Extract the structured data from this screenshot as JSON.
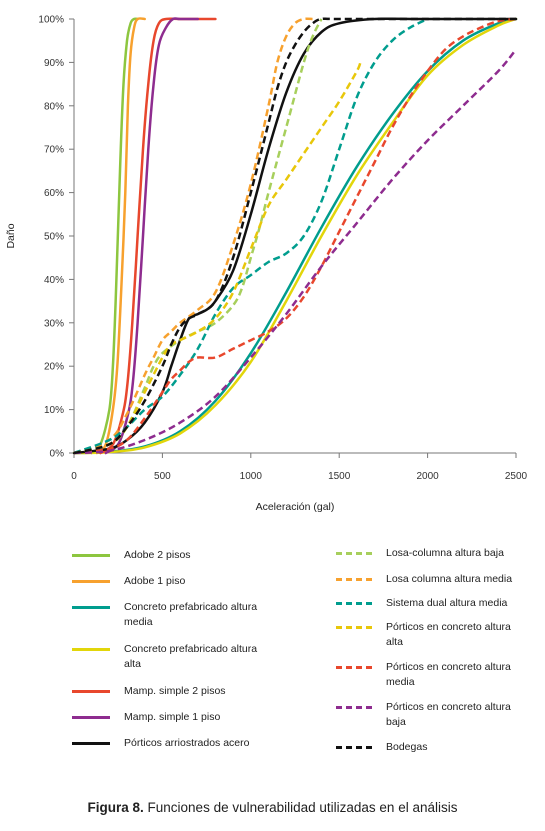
{
  "chart_data": {
    "type": "line",
    "xlabel": "Aceleración (gal)",
    "ylabel": "Daño",
    "xlim": [
      0,
      2500
    ],
    "ylim": [
      0,
      100
    ],
    "x_ticks": [
      "0",
      "500",
      "1000",
      "1500",
      "2000",
      "2500"
    ],
    "y_ticks": [
      "0%",
      "10%",
      "20%",
      "30%",
      "40%",
      "50%",
      "60%",
      "70%",
      "80%",
      "90%",
      "100%"
    ],
    "grid": false,
    "legend_position": "bottom",
    "series": [
      {
        "name": "Adobe 2 pisos",
        "color": "#8dc63f",
        "dashed": false,
        "x": [
          100,
          150,
          200,
          220,
          240,
          260,
          280,
          300,
          320,
          340,
          360
        ],
        "y": [
          0,
          2,
          10,
          20,
          40,
          65,
          85,
          95,
          99,
          100,
          100
        ]
      },
      {
        "name": "Adobe 1 piso",
        "color": "#f7a12e",
        "dashed": false,
        "x": [
          130,
          180,
          220,
          245,
          270,
          290,
          305,
          320,
          340,
          360,
          400
        ],
        "y": [
          0,
          2,
          10,
          20,
          40,
          60,
          80,
          92,
          98,
          100,
          100
        ]
      },
      {
        "name": "Concreto prefabricado altura media",
        "color": "#009d8e",
        "dashed": false,
        "x": [
          0,
          200,
          400,
          600,
          800,
          1000,
          1200,
          1400,
          1600,
          1800,
          2000,
          2200,
          2400,
          2500
        ],
        "y": [
          0,
          0.3,
          1.5,
          5,
          12,
          23,
          37,
          52,
          66,
          78,
          88,
          95,
          99,
          100
        ]
      },
      {
        "name": "Concreto prefabricado altura alta",
        "color": "#e2d60a",
        "dashed": false,
        "x": [
          0,
          200,
          400,
          600,
          800,
          1000,
          1200,
          1400,
          1600,
          1800,
          2000,
          2200,
          2400,
          2500
        ],
        "y": [
          0,
          0.2,
          1.3,
          4.5,
          11,
          21,
          35,
          50,
          64,
          76,
          87,
          94,
          98.5,
          100
        ]
      },
      {
        "name": "Mamp. simple 2 pisos",
        "color": "#e8472d",
        "dashed": false,
        "x": [
          150,
          220,
          270,
          300,
          330,
          360,
          390,
          420,
          450,
          480,
          520,
          600,
          800
        ],
        "y": [
          0,
          2,
          8,
          15,
          30,
          50,
          70,
          85,
          95,
          99,
          100,
          100,
          100
        ]
      },
      {
        "name": "Mamp. simple 1 piso",
        "color": "#8e2c8f",
        "dashed": false,
        "x": [
          180,
          250,
          300,
          330,
          360,
          390,
          420,
          450,
          480,
          520,
          560,
          600,
          700
        ],
        "y": [
          0,
          2,
          8,
          15,
          30,
          50,
          70,
          85,
          94,
          98,
          100,
          100,
          100
        ]
      },
      {
        "name": "Pórticos arriostrados acero",
        "color": "#111111",
        "dashed": false,
        "x": [
          0,
          200,
          300,
          400,
          500,
          550,
          600,
          650,
          700,
          750,
          800,
          900,
          1000,
          1100,
          1200,
          1300,
          1400,
          1500,
          1700,
          2000,
          2500
        ],
        "y": [
          0,
          1,
          3,
          7,
          14,
          20,
          26,
          31,
          32,
          33,
          35,
          42,
          55,
          70,
          83,
          92,
          97,
          99,
          100,
          100,
          100
        ]
      },
      {
        "name": "Losa-columna altura baja",
        "color": "#a7cf5c",
        "dashed": true,
        "x": [
          0,
          200,
          300,
          400,
          450,
          500,
          600,
          700,
          800,
          900,
          950,
          1000,
          1050,
          1100,
          1200,
          1300,
          1350,
          1400
        ],
        "y": [
          0,
          2,
          6,
          15,
          20,
          23,
          26,
          28,
          30,
          34,
          38,
          45,
          52,
          60,
          75,
          90,
          96,
          100
        ]
      },
      {
        "name": "Losa columna altura media",
        "color": "#f7a12e",
        "dashed": true,
        "x": [
          0,
          200,
          300,
          400,
          450,
          500,
          550,
          600,
          700,
          800,
          900,
          1000,
          1100,
          1150,
          1200,
          1250,
          1300,
          1350
        ],
        "y": [
          0,
          3,
          9,
          18,
          22,
          26,
          28,
          30,
          33,
          37,
          48,
          62,
          80,
          90,
          96,
          99,
          100,
          100
        ]
      },
      {
        "name": "Sistema dual altura media",
        "color": "#009d8e",
        "dashed": true,
        "x": [
          0,
          200,
          300,
          400,
          500,
          600,
          700,
          800,
          900,
          1000,
          1100,
          1200,
          1300,
          1400,
          1500,
          1600,
          1700,
          1800,
          1900,
          2000
        ],
        "y": [
          0,
          3,
          6,
          10,
          13,
          18,
          24,
          32,
          38,
          41,
          44,
          46,
          50,
          58,
          70,
          82,
          90,
          95,
          98,
          100
        ]
      },
      {
        "name": "Pórticos en concreto altura alta",
        "color": "#e8c70a",
        "dashed": true,
        "x": [
          0,
          200,
          300,
          400,
          500,
          550,
          600,
          700,
          800,
          900,
          1000,
          1100,
          1200,
          1300,
          1400,
          1500,
          1600,
          1620
        ],
        "y": [
          0,
          2,
          6,
          14,
          22,
          25,
          26,
          28,
          31,
          37,
          47,
          57,
          63,
          69,
          75,
          81,
          88,
          90
        ]
      },
      {
        "name": "Pórticos en concreto altura media",
        "color": "#e8472d",
        "dashed": true,
        "x": [
          0,
          200,
          300,
          400,
          500,
          550,
          600,
          650,
          700,
          800,
          900,
          1000,
          1100,
          1200,
          1300,
          1400,
          1500,
          1600,
          1700,
          1800,
          1900,
          2000,
          2100,
          2200,
          2300,
          2400,
          2500
        ],
        "y": [
          0,
          1,
          3,
          8,
          14,
          17,
          19,
          21,
          22,
          22,
          24,
          26,
          28,
          31,
          36,
          43,
          51,
          59,
          67,
          75,
          82,
          88,
          93,
          96,
          98,
          99.5,
          100
        ]
      },
      {
        "name": "Pórticos en concreto altura baja",
        "color": "#8e2c8f",
        "dashed": true,
        "x": [
          0,
          200,
          400,
          600,
          800,
          1000,
          1200,
          1400,
          1600,
          1800,
          2000,
          2200,
          2400,
          2500
        ],
        "y": [
          0,
          0.5,
          3,
          7,
          13,
          22,
          32,
          43,
          53,
          63,
          72,
          80,
          88,
          93
        ]
      },
      {
        "name": "Bodegas",
        "color": "#111111",
        "dashed": true,
        "x": [
          0,
          200,
          300,
          400,
          500,
          550,
          600,
          650,
          700,
          800,
          900,
          1000,
          1100,
          1150,
          1200,
          1250,
          1300,
          1350,
          1400,
          1500,
          2000,
          2500
        ],
        "y": [
          0,
          2,
          6,
          12,
          20,
          25,
          29,
          31,
          32,
          35,
          45,
          60,
          76,
          84,
          90,
          94,
          97,
          99,
          100,
          100,
          100,
          100
        ]
      }
    ]
  },
  "caption": {
    "label": "Figura 8.",
    "text": " Funciones de vulnerabilidad utilizadas en el análisis"
  }
}
